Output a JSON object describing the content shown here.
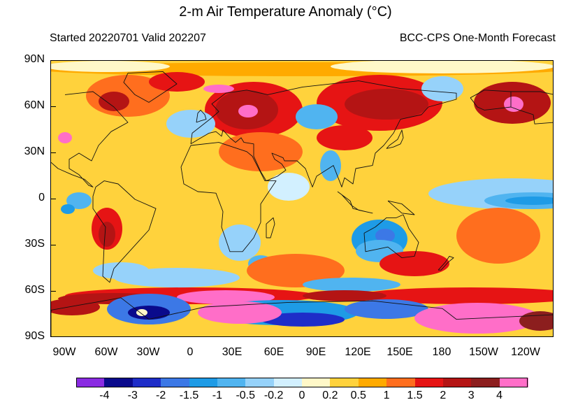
{
  "title": "2-m Air Temperature Anomaly (°C)",
  "subtitle_left": "Started 20220701  Valid 202207",
  "subtitle_right": "BCC-CPS One-Month Forecast",
  "lat_labels": [
    "90N",
    "60N",
    "30N",
    "0",
    "30S",
    "60S",
    "90S"
  ],
  "lon_labels": [
    "90W",
    "60W",
    "30W",
    "0",
    "30E",
    "60E",
    "90E",
    "120E",
    "150E",
    "180",
    "150W",
    "120W"
  ],
  "colorbar": {
    "labels": [
      "-4",
      "-3",
      "-2",
      "-1.5",
      "-1",
      "-0.5",
      "-0.2",
      "0",
      "0.2",
      "0.5",
      "1",
      "1.5",
      "2",
      "3",
      "4"
    ],
    "colors": [
      "#8a2be2",
      "#0a0a8c",
      "#1e2dc8",
      "#3c78e6",
      "#1e9be6",
      "#50b4f0",
      "#96d2fa",
      "#d2f0ff",
      "#fff8c8",
      "#ffd23c",
      "#ffaa00",
      "#ff6e1e",
      "#e61414",
      "#b41414",
      "#8c1e1e",
      "#ff6ec8"
    ]
  },
  "map": {
    "projection": "cylindrical equidistant",
    "lon_range": [
      -110,
      250
    ],
    "lat_range": [
      -90,
      90
    ],
    "variable": "2-m air temperature anomaly",
    "units": "°C"
  }
}
